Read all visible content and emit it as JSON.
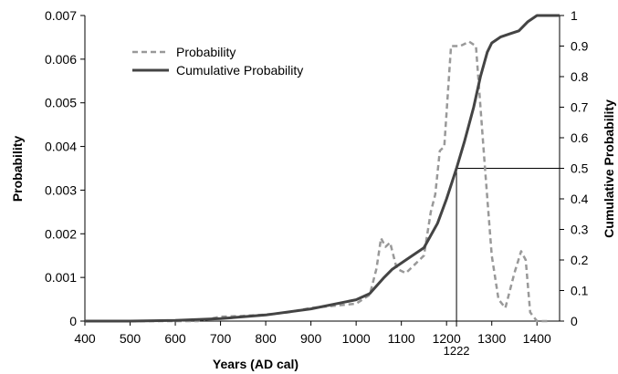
{
  "chart_data": {
    "type": "line",
    "xlabel": "Years (AD cal)",
    "ylabel_left": "Probability",
    "ylabel_right": "Cumulative Probability",
    "xlim": [
      400,
      1450
    ],
    "ylim_left": [
      0,
      0.007
    ],
    "ylim_right": [
      0,
      1
    ],
    "x_ticks": [
      "400",
      "500",
      "600",
      "700",
      "800",
      "900",
      "1000",
      "1100",
      "1200",
      "1300",
      "1400"
    ],
    "y_left_ticks": [
      "0",
      "0.001",
      "0.002",
      "0.003",
      "0.004",
      "0.005",
      "0.006",
      "0.007"
    ],
    "y_right_ticks": [
      "0",
      "0.1",
      "0.2",
      "0.3",
      "0.4",
      "0.5",
      "0.6",
      "0.7",
      "0.8",
      "0.9",
      "1"
    ],
    "grid": false,
    "legend_position": "top-left",
    "series": [
      {
        "name": "Probability",
        "axis": "left",
        "style": "dashed",
        "color": "#999999",
        "points": [
          [
            400,
            0
          ],
          [
            600,
            0
          ],
          [
            650,
            0
          ],
          [
            700,
            0.0001
          ],
          [
            750,
            0.00012
          ],
          [
            800,
            0.00015
          ],
          [
            850,
            0.0002
          ],
          [
            900,
            0.0003
          ],
          [
            950,
            0.00035
          ],
          [
            1000,
            0.0004
          ],
          [
            1030,
            0.0006
          ],
          [
            1045,
            0.0012
          ],
          [
            1055,
            0.0019
          ],
          [
            1065,
            0.0017
          ],
          [
            1075,
            0.0018
          ],
          [
            1090,
            0.0012
          ],
          [
            1110,
            0.0011
          ],
          [
            1130,
            0.0013
          ],
          [
            1150,
            0.0015
          ],
          [
            1165,
            0.0025
          ],
          [
            1175,
            0.0029
          ],
          [
            1185,
            0.0039
          ],
          [
            1195,
            0.004
          ],
          [
            1210,
            0.0063
          ],
          [
            1230,
            0.0063
          ],
          [
            1250,
            0.0064
          ],
          [
            1265,
            0.0063
          ],
          [
            1285,
            0.0035
          ],
          [
            1300,
            0.0015
          ],
          [
            1315,
            0.0005
          ],
          [
            1330,
            0.0003
          ],
          [
            1350,
            0.0011
          ],
          [
            1365,
            0.0016
          ],
          [
            1375,
            0.0014
          ],
          [
            1385,
            0.0002
          ],
          [
            1400,
            0
          ],
          [
            1425,
            0
          ]
        ]
      },
      {
        "name": "Cumulative Probability",
        "axis": "right",
        "style": "solid",
        "color": "#444444",
        "points": [
          [
            400,
            0
          ],
          [
            500,
            0
          ],
          [
            600,
            0.002
          ],
          [
            700,
            0.008
          ],
          [
            800,
            0.02
          ],
          [
            900,
            0.04
          ],
          [
            1000,
            0.07
          ],
          [
            1030,
            0.09
          ],
          [
            1060,
            0.14
          ],
          [
            1080,
            0.17
          ],
          [
            1100,
            0.19
          ],
          [
            1120,
            0.21
          ],
          [
            1150,
            0.24
          ],
          [
            1180,
            0.32
          ],
          [
            1200,
            0.4
          ],
          [
            1222,
            0.5
          ],
          [
            1240,
            0.59
          ],
          [
            1260,
            0.7
          ],
          [
            1275,
            0.8
          ],
          [
            1290,
            0.88
          ],
          [
            1300,
            0.91
          ],
          [
            1320,
            0.93
          ],
          [
            1340,
            0.94
          ],
          [
            1360,
            0.95
          ],
          [
            1380,
            0.98
          ],
          [
            1400,
            1.0
          ],
          [
            1450,
            1.0
          ]
        ]
      }
    ],
    "annotation": {
      "x": 1222,
      "y_right": 0.5,
      "label": "1222"
    }
  }
}
